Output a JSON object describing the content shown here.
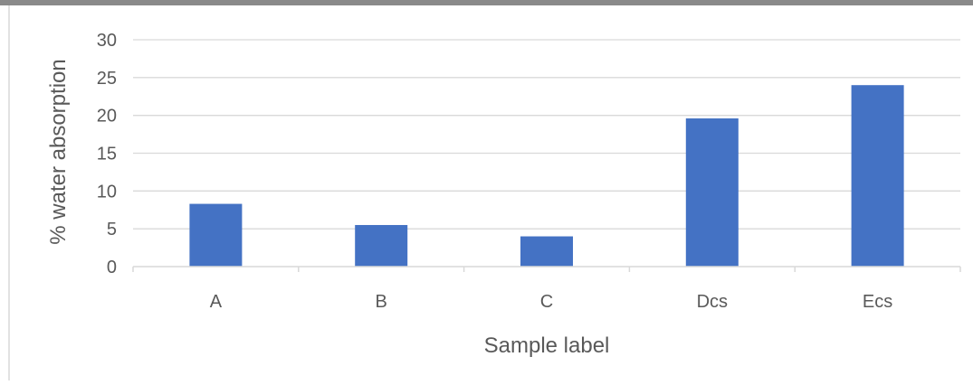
{
  "chart_data": {
    "type": "bar",
    "title": "",
    "xlabel": "Sample label",
    "ylabel": "% water absorption",
    "categories": [
      "A",
      "B",
      "C",
      "Dcs",
      "Ecs"
    ],
    "values": [
      8.3,
      5.5,
      4.0,
      19.6,
      24.0
    ],
    "ylim": [
      0,
      30
    ],
    "yticks": [
      0,
      5,
      10,
      15,
      20,
      25,
      30
    ],
    "grid": true,
    "legend": "none",
    "bar_color": "#4472C4",
    "gridline_color": "#D9D9D9",
    "axis_color": "#D9D9D9",
    "text_color": "#595959"
  }
}
